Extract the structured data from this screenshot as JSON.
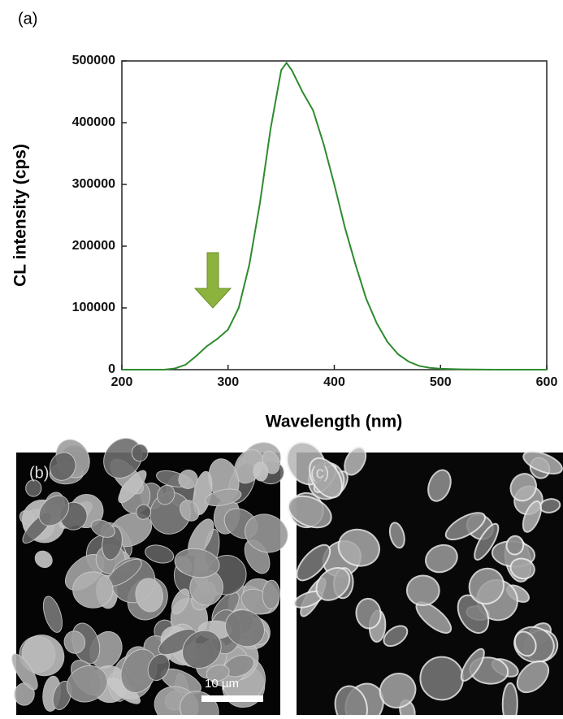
{
  "chart_data": {
    "type": "line",
    "panel_label": "(a)",
    "x_label": "Wavelength (nm)",
    "y_label": "CL intensity (cps)",
    "xlim": [
      200,
      600
    ],
    "xticks": [
      200,
      300,
      400,
      500,
      600
    ],
    "ylim": [
      0,
      500000
    ],
    "yticks": [
      0,
      100000,
      200000,
      300000,
      400000,
      500000
    ],
    "series": [
      {
        "color": "#2e8b2e",
        "x": [
          200,
          240,
          250,
          260,
          270,
          280,
          290,
          300,
          310,
          320,
          330,
          340,
          350,
          355,
          360,
          370,
          380,
          390,
          400,
          410,
          420,
          430,
          440,
          450,
          460,
          470,
          480,
          490,
          500,
          520,
          550,
          600
        ],
        "values": [
          0,
          0,
          2000,
          8000,
          22000,
          38000,
          50000,
          65000,
          100000,
          170000,
          270000,
          390000,
          485000,
          497000,
          485000,
          450000,
          420000,
          365000,
          300000,
          230000,
          170000,
          115000,
          75000,
          45000,
          25000,
          13000,
          6000,
          3000,
          1500,
          500,
          0,
          0
        ]
      }
    ]
  },
  "images": [
    {
      "label": "(b)",
      "scale_bar": "10 µm"
    },
    {
      "label": "(c)"
    }
  ]
}
